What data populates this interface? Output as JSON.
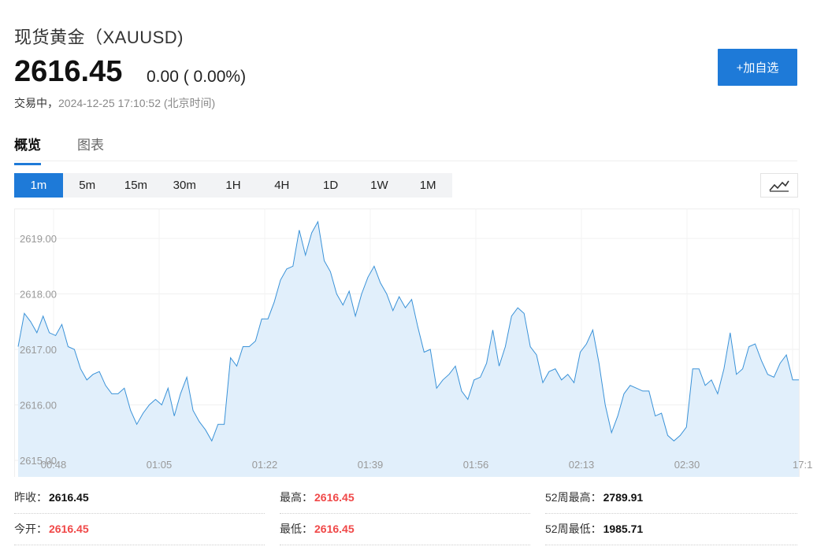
{
  "header": {
    "title": "现货黄金（XAUUSD)",
    "price": "2616.45",
    "change": "0.00 ( 0.00%)",
    "status": "交易中，",
    "datetime": "2024-12-25 17:10:52 (北京时间)",
    "add_button": "+加自选"
  },
  "tabs": [
    {
      "label": "概览",
      "active": true
    },
    {
      "label": "图表",
      "active": false
    }
  ],
  "intervals": [
    {
      "label": "1m",
      "active": true
    },
    {
      "label": "5m",
      "active": false
    },
    {
      "label": "15m",
      "active": false
    },
    {
      "label": "30m",
      "active": false
    },
    {
      "label": "1H",
      "active": false
    },
    {
      "label": "4H",
      "active": false
    },
    {
      "label": "1D",
      "active": false
    },
    {
      "label": "1W",
      "active": false
    },
    {
      "label": "1M",
      "active": false
    }
  ],
  "chart_type_icon": "line-chart-icon",
  "chart_data": {
    "type": "area",
    "ylim": [
      2615.0,
      2619.4
    ],
    "y_ticks": [
      "2615.00",
      "2616.00",
      "2617.00",
      "2618.00",
      "2619.00"
    ],
    "x_ticks": [
      "00:48",
      "01:05",
      "01:22",
      "01:39",
      "01:56",
      "02:13",
      "02:30",
      "17:1"
    ],
    "line_color": "#3a92d8",
    "fill_color": "#e1effb",
    "grid": true,
    "values": [
      2617.05,
      2617.65,
      2617.5,
      2617.3,
      2617.6,
      2617.3,
      2617.25,
      2617.45,
      2617.05,
      2617.0,
      2616.65,
      2616.45,
      2616.55,
      2616.6,
      2616.35,
      2616.2,
      2616.2,
      2616.3,
      2615.9,
      2615.65,
      2615.85,
      2616.0,
      2616.1,
      2616.0,
      2616.3,
      2615.8,
      2616.2,
      2616.5,
      2615.9,
      2615.7,
      2615.55,
      2615.35,
      2615.65,
      2615.65,
      2616.85,
      2616.7,
      2617.05,
      2617.05,
      2617.15,
      2617.55,
      2617.55,
      2617.85,
      2618.25,
      2618.45,
      2618.5,
      2619.15,
      2618.7,
      2619.1,
      2619.3,
      2618.6,
      2618.4,
      2618.0,
      2617.8,
      2618.05,
      2617.6,
      2618.0,
      2618.3,
      2618.5,
      2618.2,
      2618.0,
      2617.7,
      2617.95,
      2617.75,
      2617.9,
      2617.4,
      2616.95,
      2617.0,
      2616.3,
      2616.45,
      2616.55,
      2616.7,
      2616.25,
      2616.1,
      2616.45,
      2616.5,
      2616.75,
      2617.35,
      2616.7,
      2617.05,
      2617.6,
      2617.75,
      2617.65,
      2617.05,
      2616.9,
      2616.4,
      2616.6,
      2616.65,
      2616.45,
      2616.55,
      2616.4,
      2616.95,
      2617.1,
      2617.35,
      2616.75,
      2616.0,
      2615.5,
      2615.8,
      2616.2,
      2616.35,
      2616.3,
      2616.25,
      2616.25,
      2615.8,
      2615.85,
      2615.45,
      2615.35,
      2615.45,
      2615.6,
      2616.65,
      2616.65,
      2616.35,
      2616.45,
      2616.2,
      2616.65,
      2617.3,
      2616.55,
      2616.65,
      2617.05,
      2617.1,
      2616.8,
      2616.55,
      2616.5,
      2616.75,
      2616.9,
      2616.45,
      2616.45
    ]
  },
  "stats": {
    "prev_close_label": "昨收：",
    "prev_close": "2616.45",
    "high_label": "最高：",
    "high": "2616.45",
    "w52_high_label": "52周最高：",
    "w52_high": "2789.91",
    "open_label": "今开：",
    "open": "2616.45",
    "low_label": "最低：",
    "low": "2616.45",
    "w52_low_label": "52周最低：",
    "w52_low": "1985.71"
  }
}
